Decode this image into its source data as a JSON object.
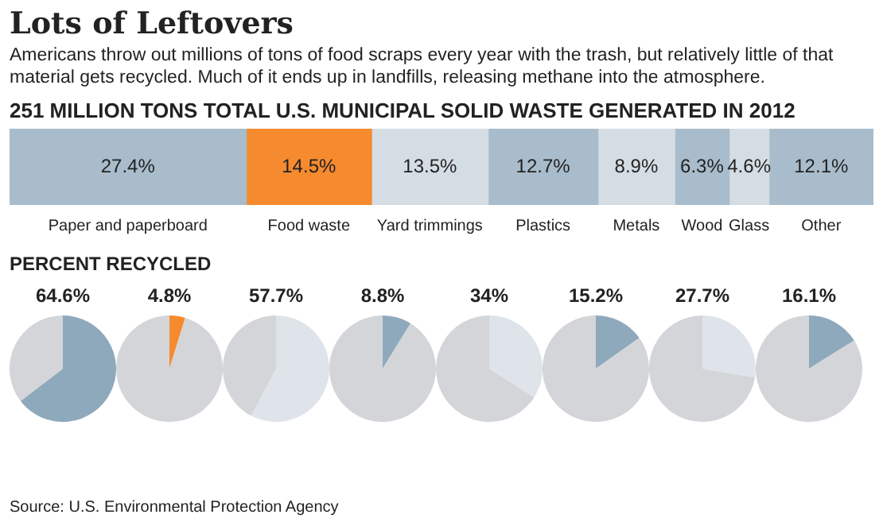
{
  "chart_data": [
    {
      "type": "bar",
      "orientation": "horizontal",
      "stacked": true,
      "title": "Lots of Leftovers",
      "subtitle": "Americans throw out millions of tons of food scraps every year with the trash, but relatively little of that material gets recycled. Much of it ends up in landfills, releasing methane into the atmosphere.",
      "annotations": [
        "251 MILLION TONS  TOTAL U.S. MUNICIPAL SOLID WASTE GENERATED IN 2012",
        "PERCENT RECYCLED",
        "Source: U.S. Environmental Protection Agency"
      ],
      "categories": [
        null
      ],
      "xlim": [
        0,
        100
      ],
      "tick_labels": false,
      "series": [
        {
          "name": "Paper and paperboard",
          "color": "#a8bccb",
          "values": [
            27.4
          ],
          "value_labels": [
            "27.4%"
          ]
        },
        {
          "name": "Food waste",
          "color": "#f58a2e",
          "values": [
            14.5
          ],
          "value_labels": [
            "14.5%"
          ]
        },
        {
          "name": "Yard trimmings",
          "color": "#d5dde4",
          "values": [
            13.5
          ],
          "value_labels": [
            "13.5%"
          ]
        },
        {
          "name": "Plastics",
          "color": "#a8bccb",
          "values": [
            12.7
          ],
          "value_labels": [
            "12.7%"
          ]
        },
        {
          "name": "Metals",
          "color": "#d5dde4",
          "values": [
            8.9
          ],
          "value_labels": [
            "8.9%"
          ]
        },
        {
          "name": "Wood",
          "color": "#a8bccb",
          "values": [
            6.3
          ],
          "value_labels": [
            "6.3%"
          ]
        },
        {
          "name": "Glass",
          "color": "#d5dde4",
          "values": [
            4.6
          ],
          "value_labels": [
            "4.6%"
          ]
        },
        {
          "name": "Other",
          "color": "#a8bccb",
          "values": [
            12.1
          ],
          "value_labels": [
            "12.1%"
          ]
        }
      ]
    },
    {
      "type": "pie",
      "categories": [
        null,
        null
      ],
      "values": [
        64.6,
        35.4
      ],
      "colors": [
        "#8fa9bc",
        "#d3d5d8"
      ],
      "value_labels": [
        "64.6%",
        null
      ]
    },
    {
      "type": "pie",
      "categories": [
        null,
        null
      ],
      "values": [
        4.8,
        95.2
      ],
      "colors": [
        "#f58a2e",
        "#d3d5d8"
      ],
      "value_labels": [
        "4.8%",
        null
      ]
    },
    {
      "type": "pie",
      "categories": [
        null,
        null
      ],
      "values": [
        57.7,
        42.3
      ],
      "colors": [
        "#dfe4ea",
        "#d3d5d8"
      ],
      "value_labels": [
        "57.7%",
        null
      ]
    },
    {
      "type": "pie",
      "categories": [
        null,
        null
      ],
      "values": [
        8.8,
        91.2
      ],
      "colors": [
        "#8fa9bc",
        "#d3d5d8"
      ],
      "value_labels": [
        "8.8%",
        null
      ]
    },
    {
      "type": "pie",
      "categories": [
        null,
        null
      ],
      "values": [
        34,
        66
      ],
      "colors": [
        "#dfe4ea",
        "#d3d5d8"
      ],
      "value_labels": [
        "34%",
        null
      ]
    },
    {
      "type": "pie",
      "categories": [
        null,
        null
      ],
      "values": [
        15.2,
        84.8
      ],
      "colors": [
        "#8fa9bc",
        "#d3d5d8"
      ],
      "value_labels": [
        "15.2%",
        null
      ]
    },
    {
      "type": "pie",
      "categories": [
        null,
        null
      ],
      "values": [
        27.7,
        72.3
      ],
      "colors": [
        "#dfe4ea",
        "#d3d5d8"
      ],
      "value_labels": [
        "27.7%",
        null
      ]
    },
    {
      "type": "pie",
      "categories": [
        null,
        null
      ],
      "values": [
        16.1,
        83.9
      ],
      "colors": [
        "#8fa9bc",
        "#d3d5d8"
      ],
      "value_labels": [
        "16.1%",
        null
      ]
    }
  ]
}
